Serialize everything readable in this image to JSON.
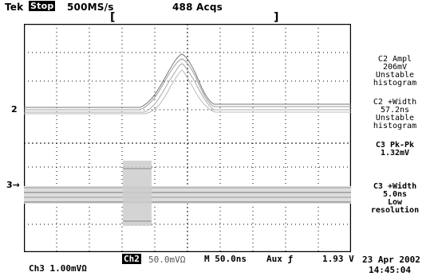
{
  "header": {
    "brand": "Tek",
    "run_state": "Stop",
    "sample_rate": "500MS/s",
    "acquisitions": "488 Acqs",
    "left_bracket": "[",
    "right_bracket": "]"
  },
  "markers": {
    "ch2_marker": "2",
    "ch3_marker": "3→"
  },
  "measurements": [
    {
      "lines": [
        "C2 Ampl",
        "206mV",
        "Unstable",
        "histogram"
      ]
    },
    {
      "lines": [
        "C2 +Width",
        "57.2ns",
        "Unstable",
        "histogram"
      ]
    },
    {
      "lines": [
        "C3 Pk-Pk",
        "1.32mV"
      ]
    },
    {
      "lines": [
        "C3 +Width",
        "5.0ns",
        "Low",
        "resolution"
      ]
    }
  ],
  "footer": {
    "ch3_scale": "Ch3  1.00mVΩ",
    "ch2_tag": "Ch2",
    "ch2_scale": "50.0mVΩ",
    "timebase": "M 50.0ns",
    "trigger": "Aux ƒ",
    "trigger_level": "1.93 V",
    "date": "23 Apr 2002",
    "time": "14:45:04"
  }
}
